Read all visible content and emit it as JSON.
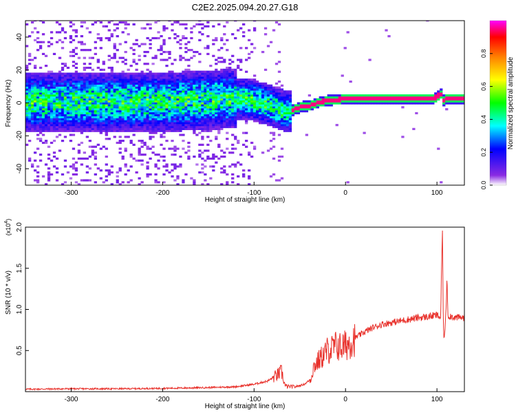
{
  "title": "C2E2.2025.094.20.27.G18",
  "chart_data": [
    {
      "type": "heatmap",
      "title": "C2E2.2025.094.20.27.G18",
      "xlabel": "Height of straight line (km)",
      "ylabel": "Frequency (Hz)",
      "xlim": [
        -350,
        130
      ],
      "ylim": [
        -50,
        50
      ],
      "xticks": [
        -300,
        -200,
        -100,
        0,
        100
      ],
      "yticks": [
        -40,
        -20,
        0,
        20,
        40
      ],
      "grid": false,
      "colorbar": {
        "label": "Normalized spectral amplitude",
        "range": [
          0,
          1
        ],
        "ticks": [
          0.0,
          0.2,
          0.4,
          0.6,
          0.8
        ],
        "tick_labels": [
          "0.0",
          "0.2",
          "0.4",
          "0.6",
          "0.8"
        ],
        "colormap": [
          "#ffffff",
          "#8a2be2",
          "#0000ff",
          "#00ffff",
          "#00ff00",
          "#ffff00",
          "#ff8000",
          "#ff0000",
          "#ff00ff"
        ]
      },
      "ridge": {
        "x": [
          -350,
          -300,
          -250,
          -200,
          -150,
          -130,
          -110,
          -90,
          -75,
          -65,
          -60,
          -50,
          -40,
          -30,
          -20,
          0,
          50,
          95,
          100,
          103,
          106,
          110,
          130
        ],
        "frequency": [
          0,
          0,
          0,
          0,
          1,
          2,
          2,
          -1,
          -4,
          -6,
          -5,
          -3,
          -2,
          0,
          1,
          2,
          2,
          2,
          4,
          5,
          1,
          2,
          2
        ]
      }
    },
    {
      "type": "line",
      "xlabel": "Height of straight line (km)",
      "ylabel": "SNR (10 * v/v)",
      "y_multiplier_label": "(x10",
      "y_multiplier_exponent": "4",
      "y_multiplier_close": ")",
      "xlim": [
        -350,
        130
      ],
      "ylim": [
        0,
        20000
      ],
      "xticks": [
        -300,
        -200,
        -100,
        0,
        100
      ],
      "yticks": [
        5000,
        10000,
        15000,
        20000
      ],
      "ytick_labels": [
        "0.5",
        "1.0",
        "1.5",
        "2.0"
      ],
      "grid": false,
      "series": [
        {
          "color": "#e8302a",
          "x": [
            -350,
            -300,
            -250,
            -200,
            -150,
            -120,
            -100,
            -85,
            -75,
            -70,
            -66,
            -62,
            -55,
            -45,
            -38,
            -35,
            -30,
            -25,
            -20,
            -15,
            -10,
            -5,
            0,
            10,
            20,
            30,
            40,
            50,
            60,
            70,
            80,
            90,
            95,
            100,
            104,
            106,
            107,
            108,
            110,
            111,
            112,
            115,
            120,
            130
          ],
          "y": [
            300,
            350,
            350,
            400,
            500,
            600,
            900,
            1300,
            2000,
            2400,
            700,
            600,
            600,
            900,
            1500,
            3000,
            3700,
            4300,
            5000,
            5200,
            5600,
            5400,
            5600,
            6500,
            7200,
            7800,
            8200,
            8400,
            8600,
            8800,
            9000,
            9100,
            9200,
            9300,
            9000,
            19800,
            7500,
            6500,
            9800,
            14500,
            9200,
            9200,
            9000,
            9000
          ]
        }
      ]
    }
  ]
}
